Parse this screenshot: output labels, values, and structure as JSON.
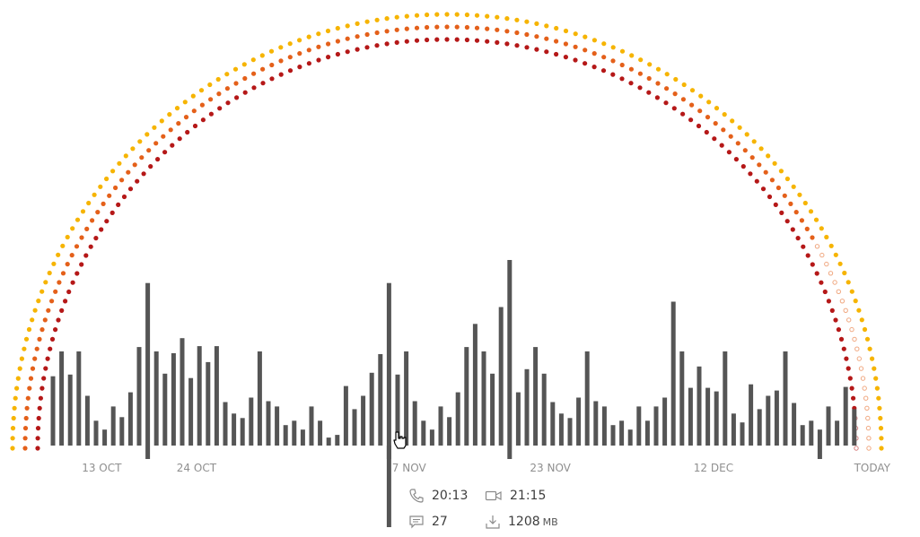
{
  "colors": {
    "bar": "#555555",
    "arc_outer": "#f6b400",
    "arc_middle": "#e4601a",
    "arc_inner": "#b51818",
    "axis_text": "#8f8f8f"
  },
  "chart_data": {
    "type": "bar",
    "title": "",
    "xlabel": "",
    "ylabel": "",
    "ylim": [
      0,
      210
    ],
    "grid": false,
    "tick_labels": [
      {
        "label": "13 OCT",
        "day_index": 2
      },
      {
        "label": "24 OCT",
        "day_index": 13
      },
      {
        "label": "7 NOV",
        "day_index": 38
      },
      {
        "label": "23 NOV",
        "day_index": 54
      },
      {
        "label": "12 DEC",
        "day_index": 73
      },
      {
        "label": "TODAY",
        "day_index": 89
      }
    ],
    "values": [
      78,
      106,
      80,
      106,
      56,
      28,
      18,
      44,
      32,
      60,
      111,
      183,
      106,
      81,
      104,
      121,
      76,
      112,
      94,
      112,
      49,
      36,
      31,
      54,
      106,
      50,
      44,
      23,
      28,
      18,
      44,
      28,
      9,
      12,
      67,
      41,
      56,
      82,
      103,
      183,
      80,
      106,
      50,
      28,
      18,
      44,
      32,
      60,
      111,
      137,
      106,
      81,
      156,
      209,
      60,
      86,
      111,
      81,
      49,
      36,
      31,
      54,
      106,
      50,
      44,
      23,
      28,
      18,
      44,
      28,
      44,
      54,
      162,
      106,
      65,
      89,
      65,
      61,
      106,
      36,
      26,
      69,
      41,
      56,
      62,
      106,
      48,
      23,
      28,
      18,
      44,
      28,
      66,
      41
    ],
    "highlight_indices": [
      11,
      39,
      53,
      89
    ],
    "arcs": {
      "outer_filled_fraction": 1.0,
      "middle_filled_fraction": 0.84,
      "inner_filled_fraction": 0.97
    }
  },
  "stats": {
    "call_time": "20:13",
    "video_time": "21:15",
    "messages": "27",
    "download_value": "1208",
    "download_unit": "MB"
  }
}
